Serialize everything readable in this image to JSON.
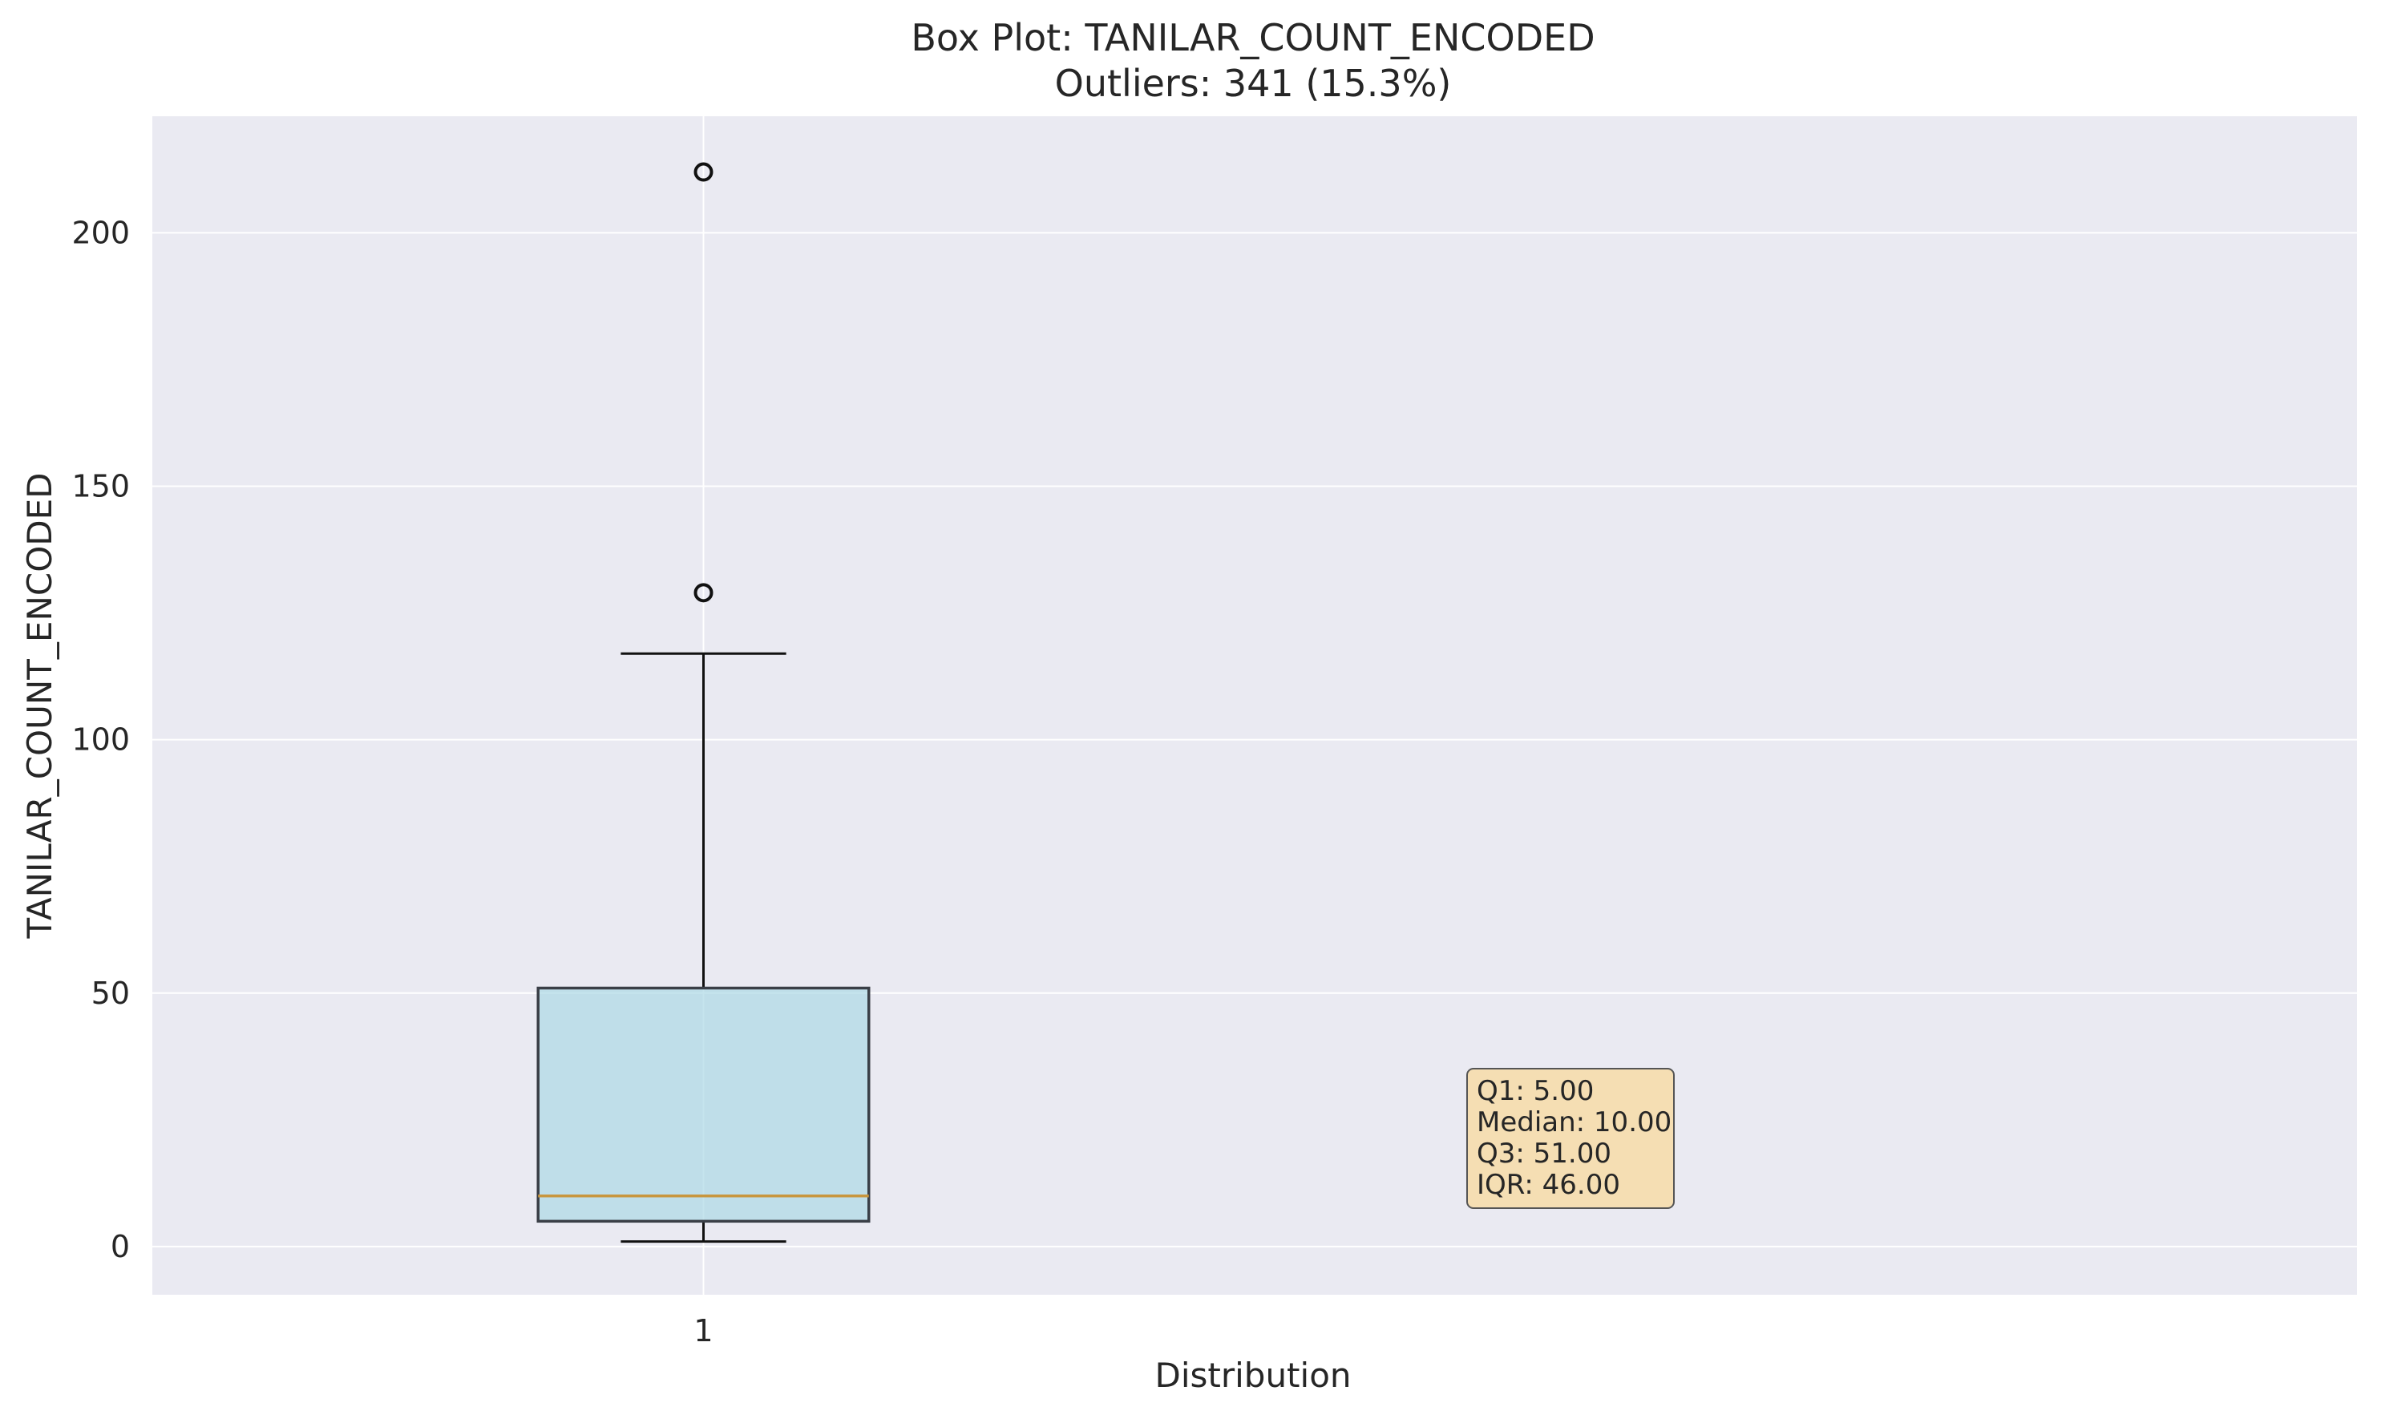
{
  "chart_data": {
    "type": "box",
    "title": "Box Plot: TANILAR_COUNT_ENCODED",
    "subtitle": "Outliers: 341 (15.3%)",
    "xlabel": "Distribution",
    "ylabel": "TANILAR_COUNT_ENCODED",
    "categories": [
      "1"
    ],
    "ylim": [
      -9.5,
      223
    ],
    "yticks": [
      0,
      50,
      100,
      150,
      200
    ],
    "xlim": [
      0.5,
      2.5
    ],
    "grid": true,
    "box": {
      "position": 1,
      "whisker_low": 1,
      "q1": 5,
      "median": 10,
      "q3": 51,
      "whisker_high": 117,
      "outliers": [
        129,
        212
      ]
    },
    "stats_labels": [
      "Q1: 5.00",
      "Median: 10.00",
      "Q3: 51.00",
      "IQR: 46.00"
    ],
    "colors": {
      "background": "#eaeaf2",
      "grid": "#ffffff",
      "box_fill": "#add8e6",
      "box_edge": "#3a3f47",
      "median": "#c8963e",
      "stats_box_fill": "#f5deb3"
    }
  }
}
